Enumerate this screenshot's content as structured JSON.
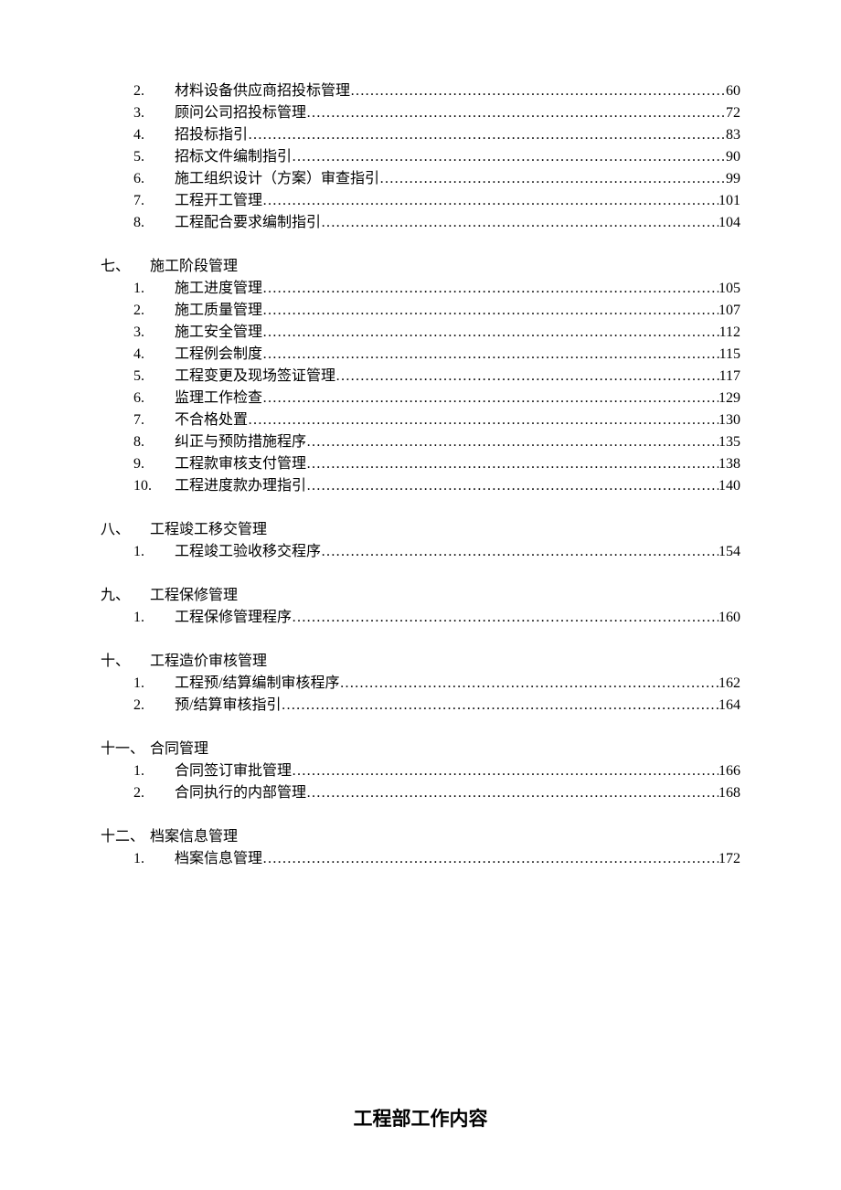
{
  "colors": {
    "text": "#000000",
    "background": "#ffffff"
  },
  "typography": {
    "body_fontsize": 16,
    "body_lineheight": 24,
    "title_fontsize": 21,
    "font_family": "SimSun"
  },
  "dots_fill": "………………………………………………………………………………………………………………",
  "initial_entries": [
    {
      "num": "2.",
      "title": "材料设备供应商招投标管理",
      "page": "60"
    },
    {
      "num": "3.",
      "title": "顾问公司招投标管理",
      "page": "72"
    },
    {
      "num": "4.",
      "title": "招投标指引",
      "page": "83"
    },
    {
      "num": "5.",
      "title": "招标文件编制指引",
      "page": "90"
    },
    {
      "num": "6.",
      "title": "施工组织设计（方案）审查指引",
      "page": "99"
    },
    {
      "num": "7.",
      "title": "工程开工管理",
      "page": "101"
    },
    {
      "num": "8.",
      "title": "工程配合要求编制指引",
      "page": "104"
    }
  ],
  "sections": [
    {
      "num": "七、",
      "title": "施工阶段管理",
      "entries": [
        {
          "num": "1.",
          "title": "施工进度管理",
          "page": "105"
        },
        {
          "num": "2.",
          "title": "施工质量管理",
          "page": "107"
        },
        {
          "num": "3.",
          "title": "施工安全管理",
          "page": "112"
        },
        {
          "num": "4.",
          "title": "工程例会制度",
          "page": "115"
        },
        {
          "num": "5.",
          "title": "工程变更及现场签证管理",
          "page": "117"
        },
        {
          "num": "6.",
          "title": "监理工作检查",
          "page": "129"
        },
        {
          "num": "7.",
          "title": "不合格处置",
          "page": "130"
        },
        {
          "num": "8.",
          "title": "纠正与预防措施程序",
          "page": "135"
        },
        {
          "num": "9.",
          "title": "工程款审核支付管理",
          "page": "138"
        },
        {
          "num": "10.",
          "title": "工程进度款办理指引",
          "page": "140"
        }
      ]
    },
    {
      "num": "八、",
      "title": "工程竣工移交管理",
      "entries": [
        {
          "num": "1.",
          "title": "工程竣工验收移交程序",
          "page": "154"
        }
      ]
    },
    {
      "num": "九、",
      "title": "工程保修管理",
      "entries": [
        {
          "num": "1.",
          "title": "工程保修管理程序",
          "page": "160"
        }
      ]
    },
    {
      "num": "十、",
      "title": "工程造价审核管理",
      "entries": [
        {
          "num": "1.",
          "title": "工程预/结算编制审核程序",
          "page": "162"
        },
        {
          "num": "2.",
          "title": "预/结算审核指引",
          "page": "164"
        }
      ]
    },
    {
      "num": "十一、",
      "title": "合同管理",
      "entries": [
        {
          "num": "1.",
          "title": "合同签订审批管理",
          "page": "166"
        },
        {
          "num": "2.",
          "title": "合同执行的内部管理",
          "page": "168"
        }
      ]
    },
    {
      "num": "十二、",
      "title": "档案信息管理",
      "entries": [
        {
          "num": "1.",
          "title": "档案信息管理",
          "page": "172"
        }
      ]
    }
  ],
  "bottom_title": "工程部工作内容"
}
